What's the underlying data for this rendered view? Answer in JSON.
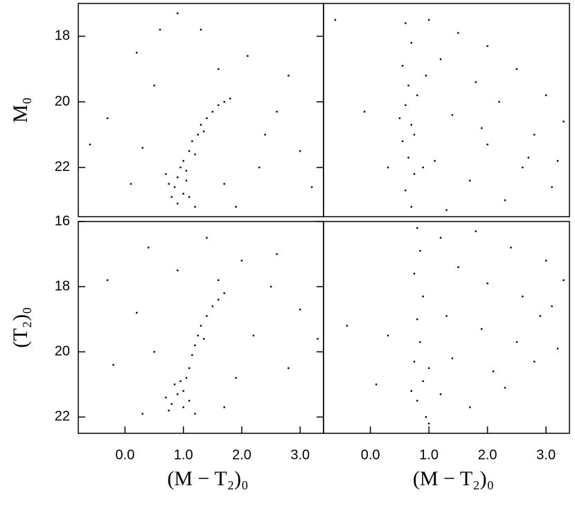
{
  "chart_data": [
    {
      "type": "scatter",
      "ylabel": "M₀",
      "color": "#000000",
      "xlim": [
        -0.8,
        3.4
      ],
      "ylim": [
        23.5,
        17
      ],
      "yticks": [
        18,
        20,
        22
      ],
      "x": [
        0.85,
        0.9,
        1.0,
        0.95,
        1.05,
        0.8,
        1.1,
        0.75,
        1.0,
        1.1,
        1.15,
        1.25,
        1.3,
        1.4,
        1.5,
        1.6,
        1.7,
        1.8,
        1.2,
        0.9,
        1.2,
        0.7,
        1.35,
        1.05,
        -0.3,
        0.2,
        0.6,
        0.9,
        1.3,
        2.1,
        2.6,
        3.0,
        2.3,
        1.9,
        0.3,
        0.1,
        2.8,
        3.2,
        1.6,
        2.4,
        0.5,
        -0.6,
        1.7
      ],
      "values": [
        22.6,
        22.3,
        22.8,
        22.0,
        22.4,
        22.9,
        22.9,
        22.5,
        21.8,
        21.5,
        21.2,
        21.0,
        20.7,
        20.5,
        20.3,
        20.1,
        20.0,
        19.9,
        21.6,
        23.1,
        23.2,
        22.2,
        20.9,
        22.1,
        20.5,
        18.5,
        17.8,
        17.3,
        17.8,
        18.6,
        20.3,
        21.5,
        22.0,
        23.2,
        21.4,
        22.5,
        19.2,
        22.6,
        19.0,
        21.0,
        19.5,
        21.3,
        22.5
      ]
    },
    {
      "type": "scatter",
      "color": "#000000",
      "xlim": [
        -0.8,
        3.4
      ],
      "ylim": [
        23.5,
        17
      ],
      "x": [
        0.6,
        0.7,
        0.55,
        0.65,
        0.6,
        0.7,
        0.55,
        0.65,
        0.75,
        0.6,
        0.7,
        0.8,
        0.5,
        0.75,
        0.9,
        1.0,
        1.5,
        2.0,
        2.5,
        3.0,
        3.3,
        1.2,
        1.8,
        2.2,
        2.8,
        3.2,
        1.4,
        2.0,
        2.6,
        3.1,
        1.1,
        1.7,
        2.3,
        1.3,
        0.95,
        2.7,
        1.9,
        -0.1,
        0.3,
        -0.6
      ],
      "values": [
        17.6,
        18.2,
        18.9,
        19.5,
        20.1,
        20.7,
        21.2,
        21.7,
        22.2,
        22.7,
        23.2,
        19.8,
        20.5,
        21.0,
        22.0,
        17.5,
        17.9,
        18.3,
        19.0,
        19.8,
        20.6,
        18.7,
        19.4,
        20.0,
        21.0,
        21.8,
        20.4,
        21.3,
        22.0,
        22.6,
        21.8,
        22.4,
        23.0,
        23.3,
        19.2,
        21.7,
        20.8,
        20.3,
        22.0,
        17.5
      ]
    },
    {
      "type": "scatter",
      "ylabel": "(T₂)₀",
      "xlabel": "(M − T₂)₀",
      "color": "#000000",
      "xlim": [
        -0.8,
        3.4
      ],
      "ylim": [
        22.5,
        16
      ],
      "yticks": [
        16,
        18,
        20,
        22
      ],
      "xticks": [
        {
          "value": 0,
          "label": "0.0"
        },
        {
          "value": 1,
          "label": "1.0"
        },
        {
          "value": 2,
          "label": "2.0"
        },
        {
          "value": 3,
          "label": "3.0"
        }
      ],
      "x": [
        0.8,
        0.9,
        1.0,
        0.85,
        1.0,
        1.1,
        0.75,
        1.05,
        1.1,
        1.15,
        1.2,
        1.25,
        1.3,
        1.4,
        1.5,
        1.6,
        1.7,
        0.95,
        1.2,
        0.7,
        1.35,
        0.4,
        0.9,
        1.4,
        2.0,
        2.5,
        3.0,
        3.3,
        2.2,
        1.9,
        2.8,
        0.2,
        -0.2,
        -0.3,
        0.5,
        1.6,
        2.6,
        0.3,
        1.7
      ],
      "values": [
        21.6,
        21.3,
        21.7,
        21.0,
        21.2,
        21.5,
        21.8,
        20.8,
        20.5,
        20.1,
        19.8,
        19.5,
        19.2,
        18.9,
        18.6,
        18.4,
        18.2,
        20.9,
        21.9,
        21.4,
        19.6,
        16.8,
        17.5,
        16.5,
        17.2,
        18.0,
        18.7,
        19.6,
        19.5,
        20.8,
        20.5,
        18.8,
        20.4,
        17.8,
        20.0,
        17.8,
        17.0,
        21.9,
        21.7
      ]
    },
    {
      "type": "scatter",
      "xlabel": "(M − T₂)₀",
      "color": "#000000",
      "xlim": [
        -0.8,
        3.4
      ],
      "ylim": [
        22.5,
        16
      ],
      "xticks": [
        {
          "value": 0,
          "label": "0.0"
        },
        {
          "value": 1,
          "label": "1.0"
        },
        {
          "value": 2,
          "label": "2.0"
        },
        {
          "value": 3,
          "label": "3.0"
        }
      ],
      "x": [
        0.8,
        0.85,
        0.75,
        0.9,
        0.8,
        0.85,
        0.75,
        0.9,
        0.8,
        0.95,
        0.7,
        1.0,
        1.2,
        1.8,
        2.4,
        3.0,
        3.3,
        1.5,
        2.0,
        2.6,
        3.1,
        1.3,
        1.9,
        2.5,
        3.2,
        1.4,
        2.1,
        2.8,
        1.2,
        1.7,
        2.3,
        1.0,
        2.9,
        0.3,
        0.1,
        -0.4
      ],
      "values": [
        16.2,
        16.9,
        17.6,
        18.3,
        19.0,
        19.7,
        20.3,
        20.9,
        21.5,
        22.0,
        21.2,
        20.5,
        16.5,
        16.3,
        16.8,
        17.2,
        17.8,
        17.4,
        17.9,
        18.3,
        18.6,
        18.9,
        19.3,
        19.7,
        19.9,
        20.2,
        20.6,
        20.3,
        21.3,
        21.7,
        21.1,
        22.2,
        18.9,
        19.5,
        21.0,
        19.2
      ]
    }
  ]
}
